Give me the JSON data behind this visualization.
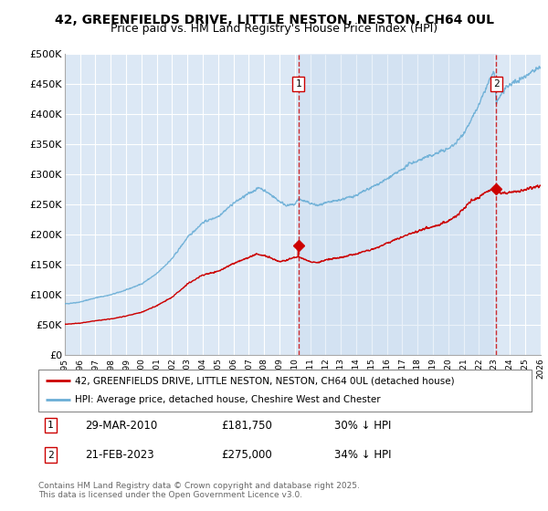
{
  "title1": "42, GREENFIELDS DRIVE, LITTLE NESTON, NESTON, CH64 0UL",
  "title2": "Price paid vs. HM Land Registry's House Price Index (HPI)",
  "ylabel_ticks": [
    "£0",
    "£50K",
    "£100K",
    "£150K",
    "£200K",
    "£250K",
    "£300K",
    "£350K",
    "£400K",
    "£450K",
    "£500K"
  ],
  "ytick_vals": [
    0,
    50000,
    100000,
    150000,
    200000,
    250000,
    300000,
    350000,
    400000,
    450000,
    500000
  ],
  "xlim": [
    1995,
    2026
  ],
  "ylim": [
    0,
    500000
  ],
  "marker1_x": 2010.23,
  "marker2_x": 2023.13,
  "marker1_price": 181750,
  "marker2_price": 275000,
  "marker1_date": "29-MAR-2010",
  "marker2_date": "21-FEB-2023",
  "marker1_pct": "30% ↓ HPI",
  "marker2_pct": "34% ↓ HPI",
  "legend_line1": "42, GREENFIELDS DRIVE, LITTLE NESTON, NESTON, CH64 0UL (detached house)",
  "legend_line2": "HPI: Average price, detached house, Cheshire West and Chester",
  "footer": "Contains HM Land Registry data © Crown copyright and database right 2025.\nThis data is licensed under the Open Government Licence v3.0.",
  "red_color": "#cc0000",
  "blue_color": "#6aaed6",
  "bg_color": "#dce8f5",
  "grid_color": "#ffffff",
  "shade_color": "#c5d8ef",
  "title_fontsize": 10,
  "subtitle_fontsize": 9
}
